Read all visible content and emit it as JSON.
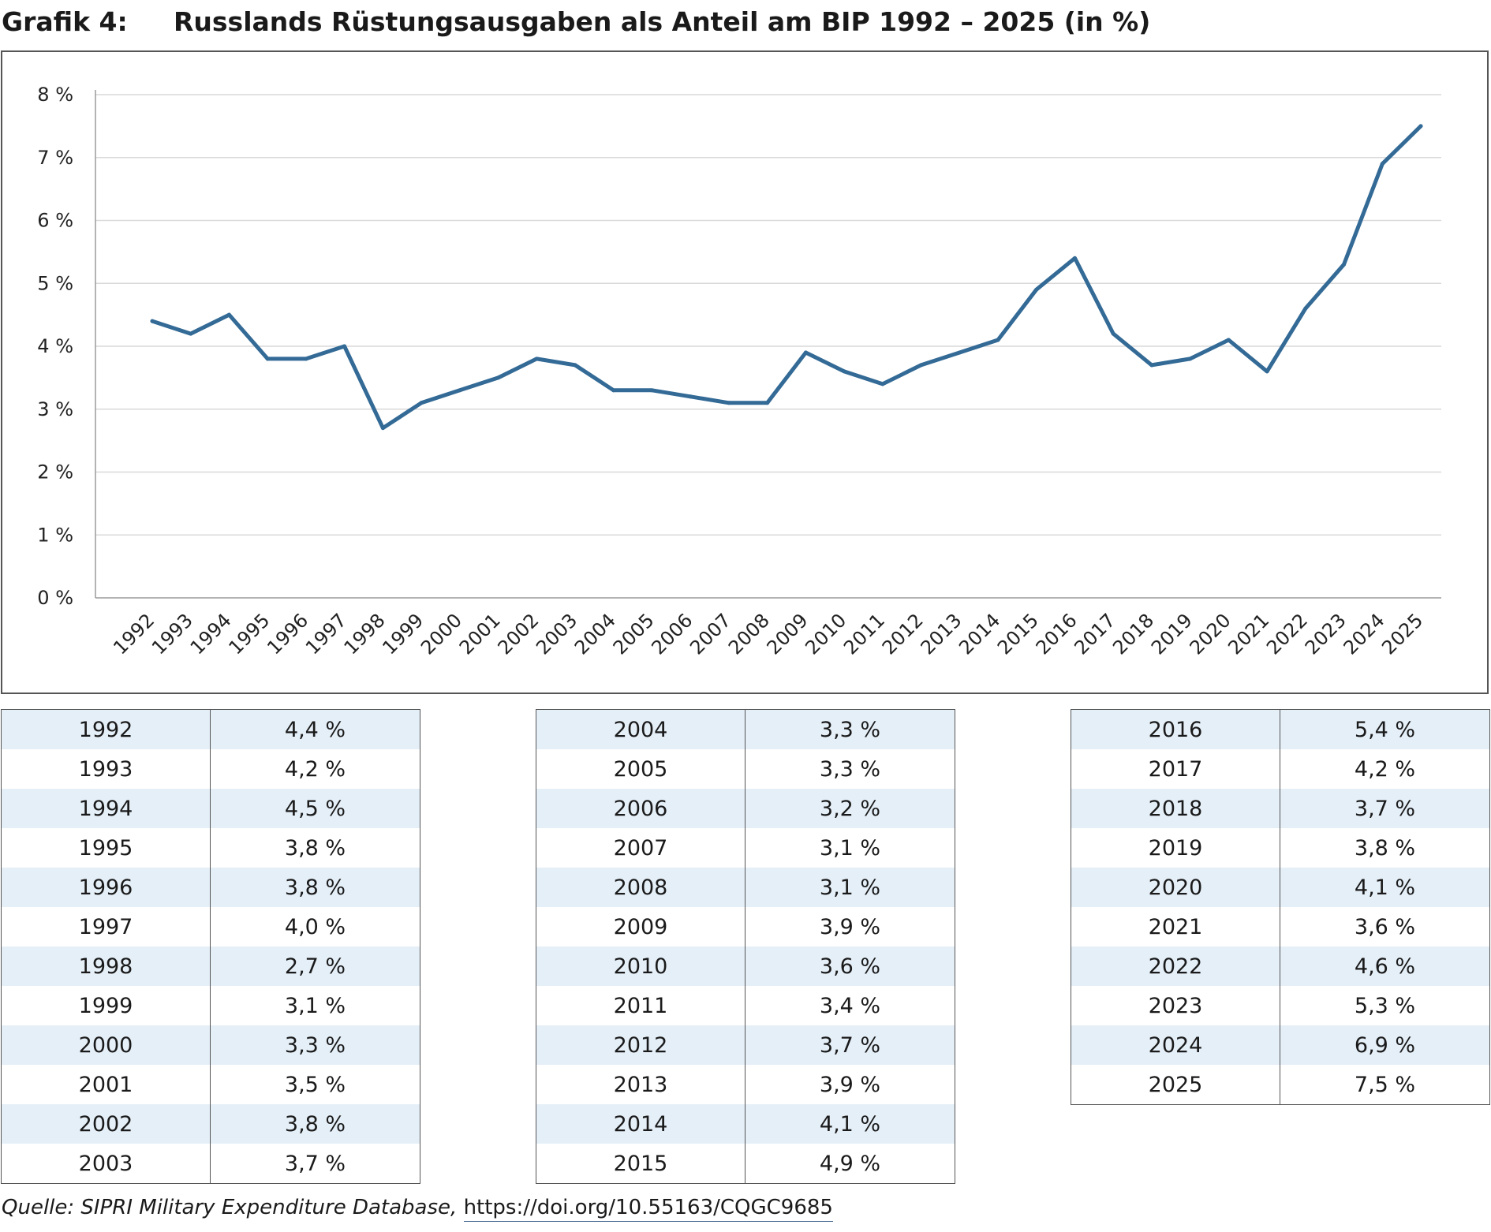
{
  "header": {
    "label": "Grafik 4:",
    "title": "Russlands Rüstungsausgaben als Anteil am BIP 1992 – 2025 (in %)"
  },
  "colors": {
    "line": "#336a96",
    "grid": "#d9d9d9",
    "axis": "#9a9a9a",
    "table_stripe": "#e5eff8",
    "border": "#555555"
  },
  "chart_data": {
    "type": "line",
    "title": "Russlands Rüstungsausgaben als Anteil am BIP 1992 – 2025 (in %)",
    "xlabel": "",
    "ylabel": "",
    "x": [
      "1992",
      "1993",
      "1994",
      "1995",
      "1996",
      "1997",
      "1998",
      "1999",
      "2000",
      "2001",
      "2002",
      "2003",
      "2004",
      "2005",
      "2006",
      "2007",
      "2008",
      "2009",
      "2010",
      "2011",
      "2012",
      "2013",
      "2014",
      "2015",
      "2016",
      "2017",
      "2018",
      "2019",
      "2020",
      "2021",
      "2022",
      "2023",
      "2024",
      "2025"
    ],
    "series": [
      {
        "values": [
          4.4,
          4.2,
          4.5,
          3.8,
          3.8,
          4.0,
          2.7,
          3.1,
          3.3,
          3.5,
          3.8,
          3.7,
          3.3,
          3.3,
          3.2,
          3.1,
          3.1,
          3.9,
          3.6,
          3.4,
          3.7,
          3.9,
          4.1,
          4.9,
          5.4,
          4.2,
          3.7,
          3.8,
          4.1,
          3.6,
          4.6,
          5.3,
          6.9,
          7.5
        ]
      }
    ],
    "ylim": [
      0,
      8
    ],
    "yticks": [
      "0 %",
      "1 %",
      "2 %",
      "3 %",
      "4 %",
      "5 %",
      "6 %",
      "7 %",
      "8 %"
    ],
    "grid": true,
    "legend": "none"
  },
  "tables": [
    {
      "rows": [
        [
          "1992",
          "4,4 %"
        ],
        [
          "1993",
          "4,2 %"
        ],
        [
          "1994",
          "4,5 %"
        ],
        [
          "1995",
          "3,8 %"
        ],
        [
          "1996",
          "3,8 %"
        ],
        [
          "1997",
          "4,0 %"
        ],
        [
          "1998",
          "2,7 %"
        ],
        [
          "1999",
          "3,1 %"
        ],
        [
          "2000",
          "3,3 %"
        ],
        [
          "2001",
          "3,5 %"
        ],
        [
          "2002",
          "3,8 %"
        ],
        [
          "2003",
          "3,7 %"
        ]
      ]
    },
    {
      "rows": [
        [
          "2004",
          "3,3 %"
        ],
        [
          "2005",
          "3,3 %"
        ],
        [
          "2006",
          "3,2 %"
        ],
        [
          "2007",
          "3,1 %"
        ],
        [
          "2008",
          "3,1 %"
        ],
        [
          "2009",
          "3,9 %"
        ],
        [
          "2010",
          "3,6 %"
        ],
        [
          "2011",
          "3,4 %"
        ],
        [
          "2012",
          "3,7 %"
        ],
        [
          "2013",
          "3,9 %"
        ],
        [
          "2014",
          "4,1 %"
        ],
        [
          "2015",
          "4,9 %"
        ]
      ]
    },
    {
      "rows": [
        [
          "2016",
          "5,4 %"
        ],
        [
          "2017",
          "4,2 %"
        ],
        [
          "2018",
          "3,7 %"
        ],
        [
          "2019",
          "3,8 %"
        ],
        [
          "2020",
          "4,1 %"
        ],
        [
          "2021",
          "3,6 %"
        ],
        [
          "2022",
          "4,6 %"
        ],
        [
          "2023",
          "5,3 %"
        ],
        [
          "2024",
          "6,9 %"
        ],
        [
          "2025",
          "7,5 %"
        ]
      ]
    }
  ],
  "source": {
    "label": "Quelle: SIPRI Military Expenditure Database, ",
    "link": "https://doi.org/10.55163/CQGC9685"
  }
}
